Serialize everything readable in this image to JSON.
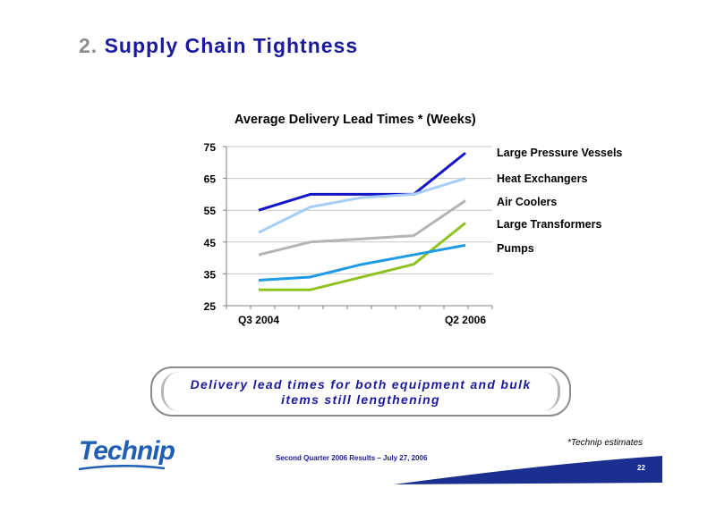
{
  "slide": {
    "title_number": "2.",
    "title_text": "Supply Chain Tightness"
  },
  "chart_data": {
    "type": "line",
    "title": "Average Delivery Lead Times * (Weeks)",
    "x": [
      "Q3 2004",
      "",
      "",
      "",
      "Q2 2006"
    ],
    "x_tick_labels": [
      "Q3 2004",
      "Q2 2006"
    ],
    "ylim": [
      25,
      75
    ],
    "y_ticks": [
      25,
      35,
      45,
      55,
      65,
      75
    ],
    "grid": true,
    "legend": "right",
    "series": [
      {
        "name": "Large Pressure Vessels",
        "color": "#1414c8",
        "values": [
          55,
          60,
          60,
          60,
          73
        ]
      },
      {
        "name": "Heat Exchangers",
        "color": "#a6cdf5",
        "values": [
          48,
          56,
          59,
          60,
          65
        ]
      },
      {
        "name": "Air Coolers",
        "color": "#b4b4b4",
        "values": [
          41,
          45,
          46,
          47,
          58
        ]
      },
      {
        "name": "Large Transformers",
        "color": "#8ec31f",
        "values": [
          30,
          30,
          34,
          38,
          51
        ]
      },
      {
        "name": "Pumps",
        "color": "#1e9ae6",
        "values": [
          33,
          34,
          38,
          41,
          44
        ]
      }
    ]
  },
  "callout": {
    "line1": "Delivery lead times for both equipment and bulk",
    "line2": "items still lengthening"
  },
  "footer": {
    "logo_text": "Technip",
    "event_text": "Second Quarter 2006 Results – July 27, 2006",
    "footnote": "*Technip estimates",
    "page_number": "22"
  }
}
